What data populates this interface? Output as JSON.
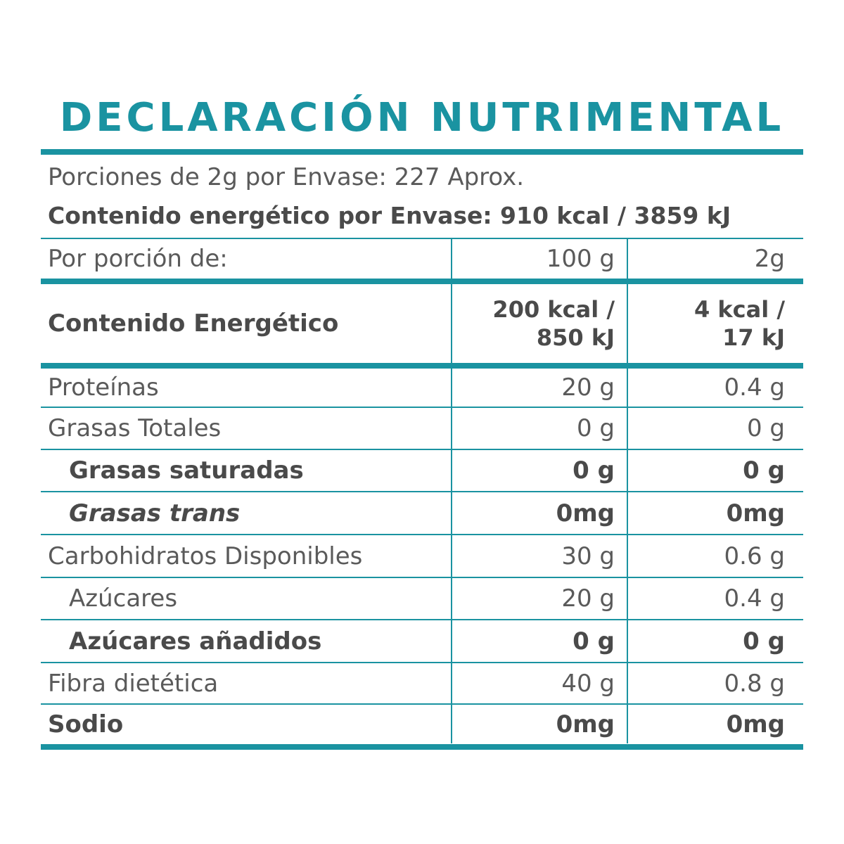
{
  "title": "DECLARACIÓN NUTRIMENTAL",
  "servings_line": "Porciones de 2g por Envase: 227 Aprox.",
  "energy_per_package": "Contenido energético por Envase: 910 kcal / 3859 kJ",
  "header": {
    "label": "Por porción de:",
    "col1": "100 g",
    "col2": "2g"
  },
  "energy_row": {
    "label": "Contenido Energético",
    "col1_line1": "200 kcal /",
    "col1_line2": "850 kJ",
    "col2_line1": "4 kcal /",
    "col2_line2": "17 kJ"
  },
  "rows": [
    {
      "label": "Proteínas",
      "col1": "20 g",
      "col2": "0.4 g"
    },
    {
      "label": "Grasas Totales",
      "col1": "0 g",
      "col2": "0 g"
    },
    {
      "label": "Grasas saturadas",
      "col1": "0 g",
      "col2": "0 g"
    },
    {
      "label": "Grasas trans",
      "col1": "0mg",
      "col2": "0mg"
    },
    {
      "label": "Carbohidratos Disponibles",
      "col1": "30 g",
      "col2": "0.6 g"
    },
    {
      "label": "Azúcares",
      "col1": "20 g",
      "col2": "0.4 g"
    },
    {
      "label": "Azúcares añadidos",
      "col1": "0 g",
      "col2": "0 g"
    },
    {
      "label": "Fibra dietética",
      "col1": "40 g",
      "col2": "0.8 g"
    },
    {
      "label": "Sodio",
      "col1": "0mg",
      "col2": "0mg"
    }
  ],
  "colors": {
    "accent": "#1a93a1",
    "text": "#5a5a5a"
  }
}
